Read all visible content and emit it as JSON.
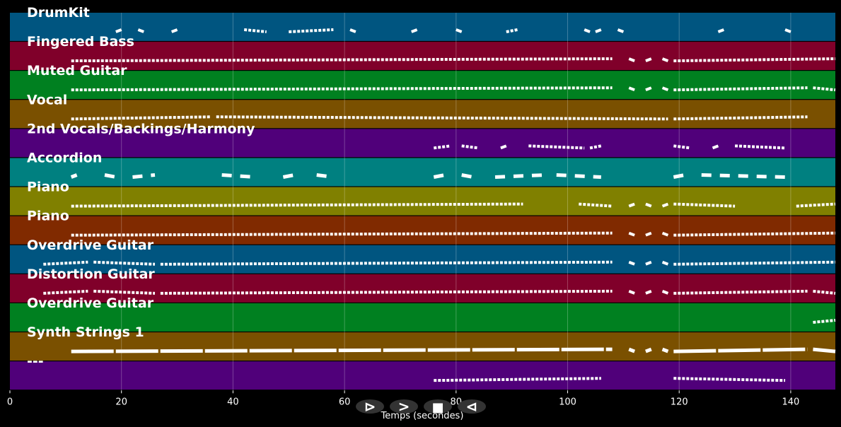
{
  "chart_data": {
    "type": "piano-roll",
    "title": "",
    "xlabel": "Temps (secondes)",
    "ylabel": "",
    "xlim": [
      0,
      148
    ],
    "xticks": [
      0,
      20,
      40,
      60,
      80,
      100,
      120,
      140
    ],
    "grid": true,
    "tracks": [
      {
        "name": "DrumKit",
        "color": "#005580",
        "segments": [
          [
            19,
            20
          ],
          [
            23,
            24
          ],
          [
            29,
            30
          ],
          [
            42,
            46
          ],
          [
            50,
            58
          ],
          [
            61,
            62
          ],
          [
            72,
            73
          ],
          [
            80,
            81
          ],
          [
            89,
            91
          ],
          [
            103,
            104
          ],
          [
            105,
            106
          ],
          [
            109,
            110
          ],
          [
            127,
            128
          ],
          [
            139,
            140
          ]
        ]
      },
      {
        "name": "Fingered Bass",
        "color": "#80002a",
        "segments": [
          [
            11,
            108
          ],
          [
            111,
            112
          ],
          [
            114,
            115
          ],
          [
            117,
            118
          ],
          [
            119,
            148
          ]
        ]
      },
      {
        "name": "Muted Guitar",
        "color": "#008020",
        "segments": [
          [
            11,
            108
          ],
          [
            111,
            112
          ],
          [
            114,
            115
          ],
          [
            117,
            118
          ],
          [
            119,
            143
          ],
          [
            144,
            148
          ]
        ]
      },
      {
        "name": "Vocal",
        "color": "#7a5000",
        "segments": [
          [
            11,
            36
          ],
          [
            37,
            118
          ],
          [
            119,
            143
          ]
        ]
      },
      {
        "name": "2nd Vocals/Backings/Harmony",
        "color": "#50007a",
        "segments": [
          [
            76,
            79
          ],
          [
            81,
            84
          ],
          [
            88,
            89
          ],
          [
            93,
            103
          ],
          [
            104,
            106
          ],
          [
            119,
            122
          ],
          [
            126,
            127
          ],
          [
            130,
            139
          ]
        ]
      },
      {
        "name": "Accordion",
        "color": "#008080",
        "segments": [
          [
            11,
            12
          ],
          [
            17,
            19
          ],
          [
            22,
            26
          ],
          [
            38,
            44
          ],
          [
            49,
            51
          ],
          [
            55,
            58
          ],
          [
            76,
            78
          ],
          [
            81,
            83
          ],
          [
            87,
            96
          ],
          [
            98,
            106
          ],
          [
            119,
            121
          ],
          [
            124,
            139
          ]
        ]
      },
      {
        "name": "Piano",
        "color": "#808000",
        "segments": [
          [
            11,
            92
          ],
          [
            102,
            108
          ],
          [
            111,
            112
          ],
          [
            114,
            115
          ],
          [
            117,
            118
          ],
          [
            119,
            130
          ],
          [
            141,
            148
          ]
        ]
      },
      {
        "name": "Piano",
        "color": "#802a00",
        "segments": [
          [
            11,
            108
          ],
          [
            111,
            112
          ],
          [
            114,
            115
          ],
          [
            117,
            118
          ],
          [
            119,
            148
          ]
        ]
      },
      {
        "name": "Overdrive Guitar",
        "color": "#005580",
        "segments": [
          [
            6,
            14
          ],
          [
            15,
            26
          ],
          [
            27,
            108
          ],
          [
            111,
            112
          ],
          [
            114,
            115
          ],
          [
            117,
            118
          ],
          [
            119,
            148
          ]
        ]
      },
      {
        "name": "Distortion Guitar",
        "color": "#80002a",
        "segments": [
          [
            6,
            14
          ],
          [
            15,
            26
          ],
          [
            27,
            108
          ],
          [
            111,
            112
          ],
          [
            114,
            115
          ],
          [
            117,
            118
          ],
          [
            119,
            143
          ],
          [
            144,
            148
          ]
        ]
      },
      {
        "name": "Overdrive Guitar",
        "color": "#008020",
        "segments": [
          [
            144,
            148
          ]
        ]
      },
      {
        "name": "Synth Strings 1",
        "color": "#7a5000",
        "segments": [
          [
            11,
            108
          ],
          [
            111,
            112
          ],
          [
            114,
            115
          ],
          [
            117,
            118
          ],
          [
            119,
            143
          ],
          [
            144,
            148
          ]
        ]
      },
      {
        "name": "---",
        "color": "#50007a",
        "segments": [
          [
            76,
            106
          ],
          [
            119,
            139
          ]
        ]
      }
    ]
  },
  "controls": {
    "play_glyph": "⊳",
    "forward_glyph": ">",
    "stop_glyph": "■",
    "back_glyph": "⊲"
  }
}
